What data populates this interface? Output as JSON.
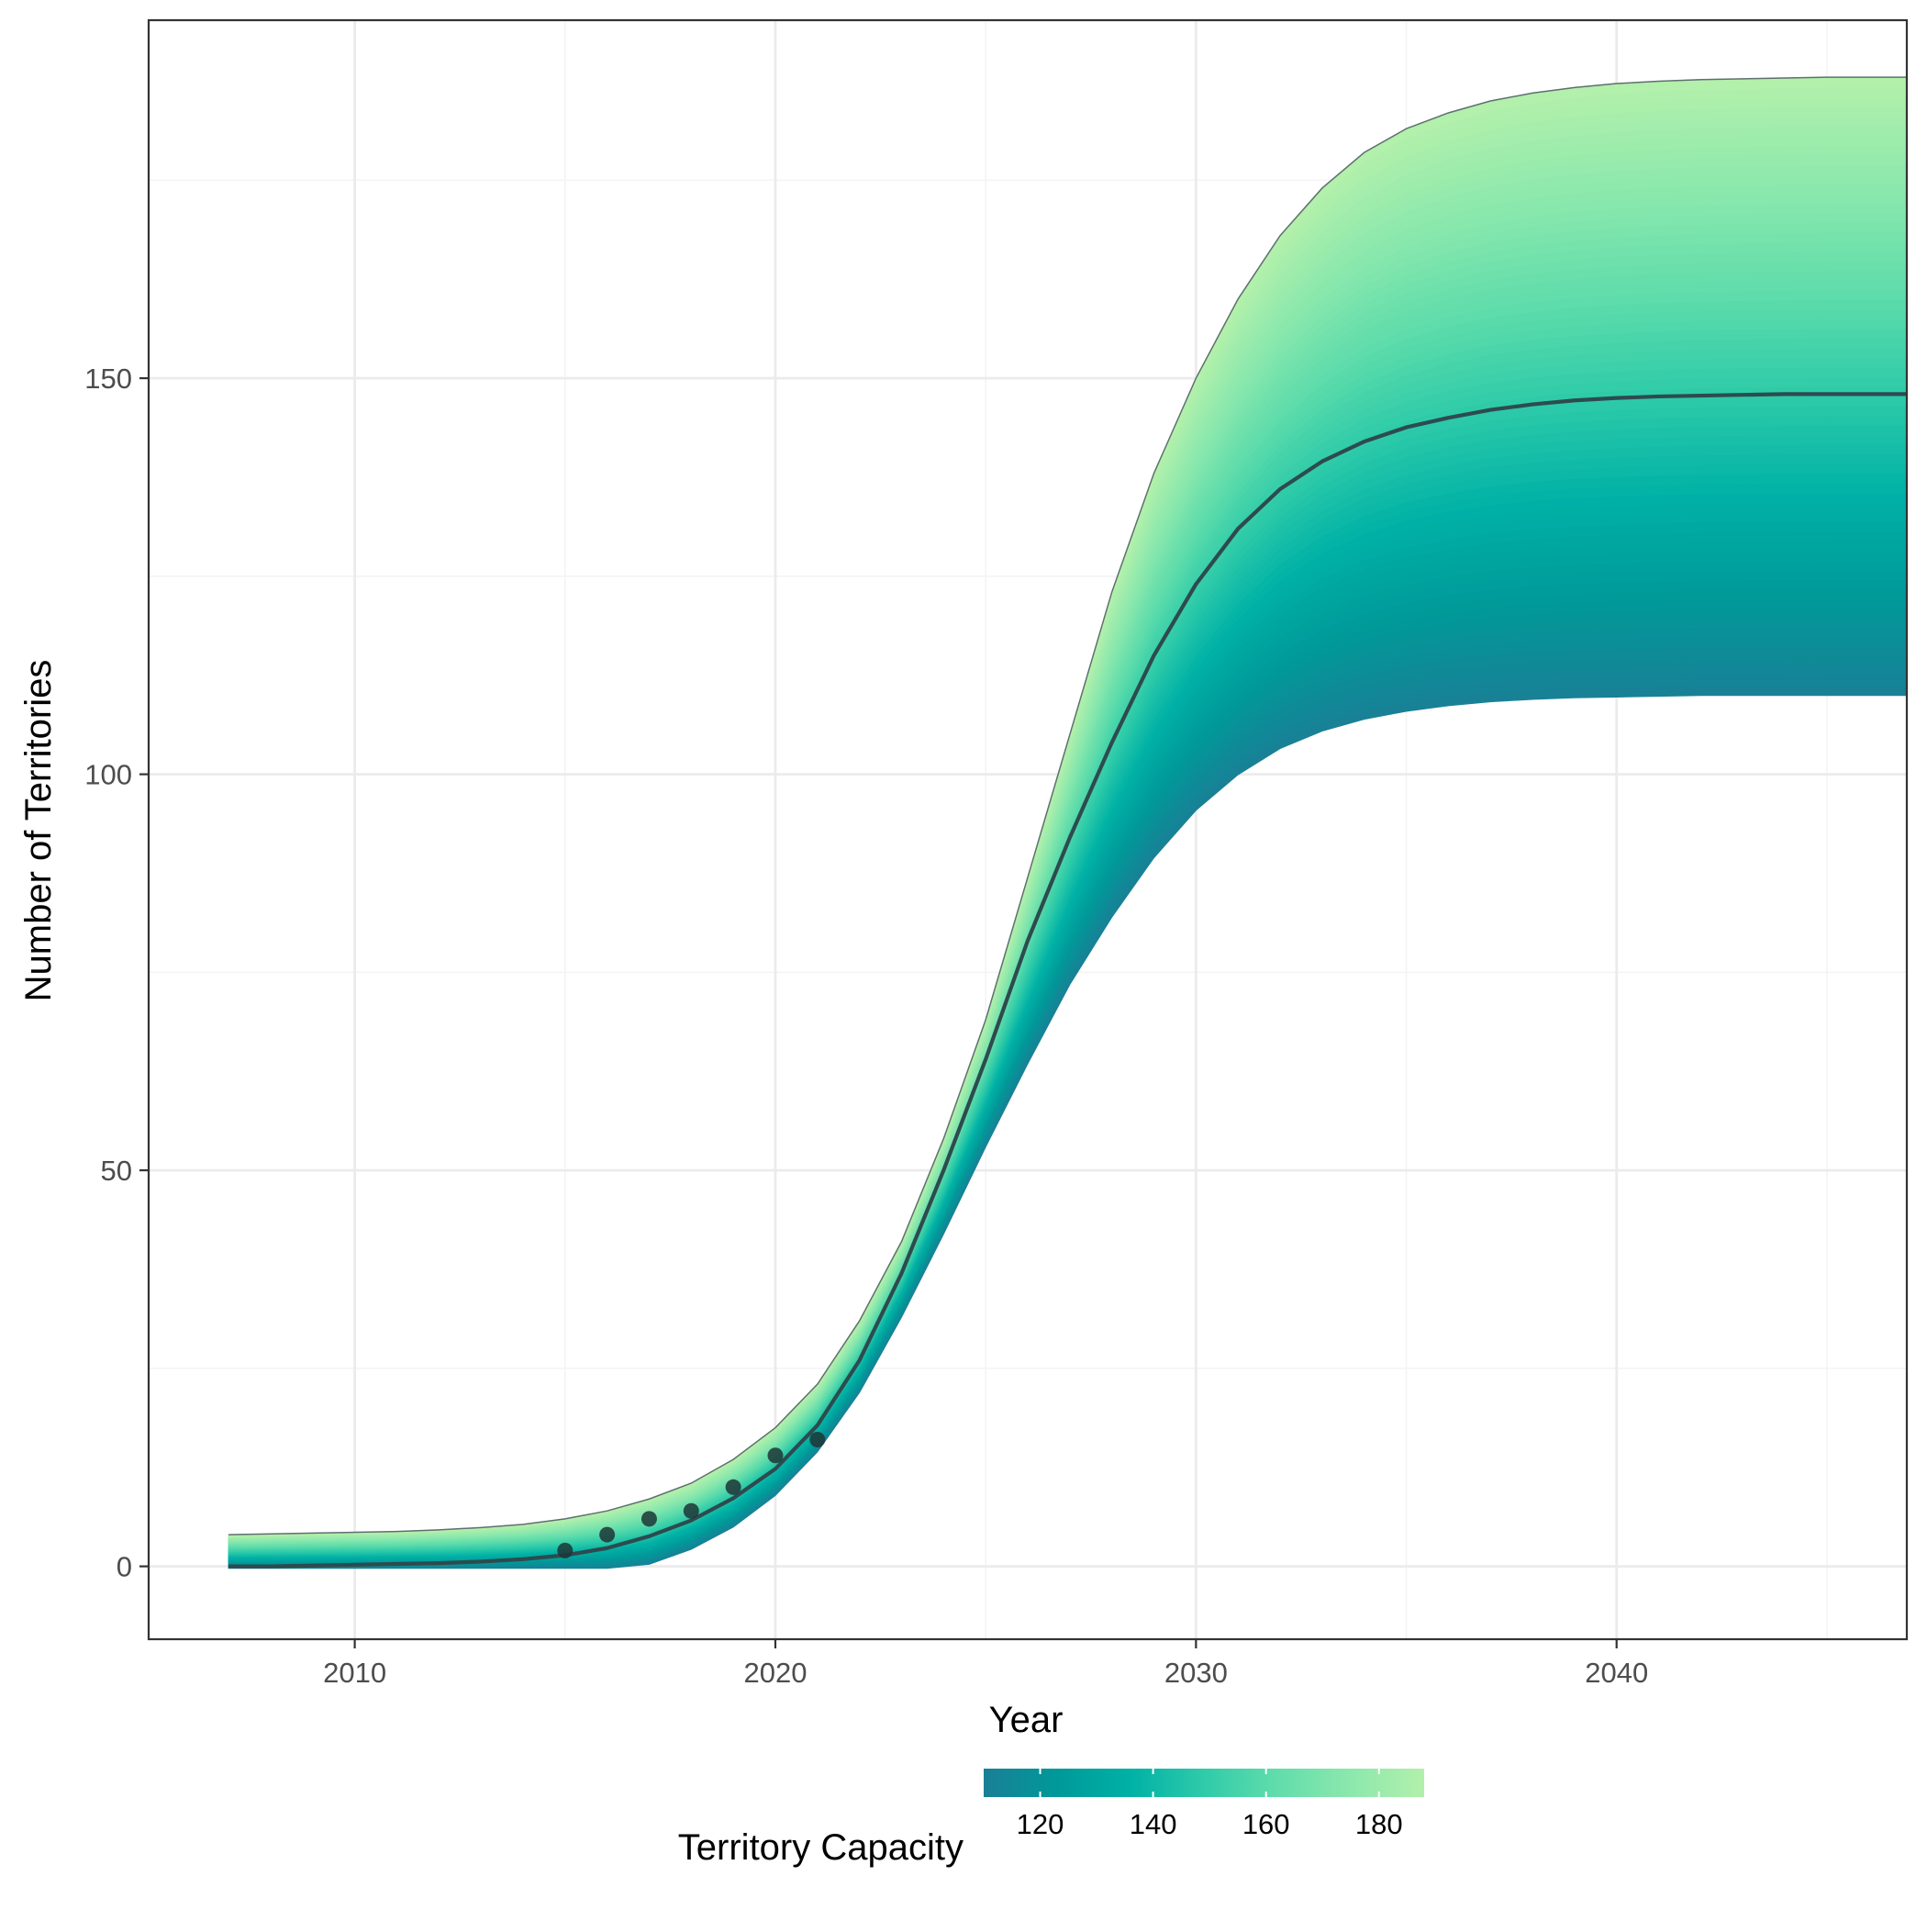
{
  "chart_data": {
    "type": "area",
    "xlabel": "Year",
    "ylabel": "Number of Territories",
    "xlim": [
      2005.1,
      2046.9
    ],
    "ylim": [
      -9.2,
      195.2
    ],
    "x_ticks": [
      2010,
      2020,
      2030,
      2040
    ],
    "x_tick_labels": [
      "2010",
      "2020",
      "2030",
      "2040"
    ],
    "y_ticks": [
      0,
      50,
      100,
      150
    ],
    "y_tick_labels": [
      "0",
      "50",
      "100",
      "150"
    ],
    "grid": true,
    "theme": "bw",
    "x": [
      2007,
      2008,
      2009,
      2010,
      2011,
      2012,
      2013,
      2014,
      2015,
      2016,
      2017,
      2018,
      2019,
      2020,
      2021,
      2022,
      2023,
      2024,
      2025,
      2026,
      2027,
      2028,
      2029,
      2030,
      2031,
      2032,
      2033,
      2034,
      2035,
      2036,
      2037,
      2038,
      2039,
      2040,
      2041,
      2042,
      2043,
      2044,
      2045,
      2046,
      2047
    ],
    "series": [
      {
        "role": "upper-bound",
        "values": [
          4,
          4.1,
          4.2,
          4.3,
          4.4,
          4.6,
          4.9,
          5.3,
          6,
          7,
          8.5,
          10.5,
          13.5,
          17.5,
          23,
          31,
          41,
          54,
          69,
          87,
          105,
          123,
          138,
          150,
          160,
          168,
          174,
          178.5,
          181.5,
          183.5,
          185,
          186,
          186.7,
          187.2,
          187.5,
          187.7,
          187.8,
          187.9,
          188,
          188,
          188
        ]
      },
      {
        "role": "median",
        "values": [
          0,
          0,
          0.1,
          0.2,
          0.3,
          0.4,
          0.6,
          0.9,
          1.4,
          2.3,
          3.8,
          5.8,
          8.6,
          12.3,
          17.8,
          26,
          37,
          50,
          64,
          79,
          92,
          104,
          115,
          124,
          131,
          136,
          139.5,
          142,
          143.8,
          145,
          146,
          146.7,
          147.2,
          147.5,
          147.7,
          147.8,
          147.9,
          148,
          148,
          148,
          148
        ]
      },
      {
        "role": "lower-bound",
        "values": [
          -0.2,
          -0.2,
          -0.2,
          -0.2,
          -0.2,
          -0.2,
          -0.2,
          -0.2,
          -0.2,
          -0.2,
          0.3,
          2.2,
          5,
          9,
          14.5,
          22,
          31.5,
          42,
          53,
          63.5,
          73.5,
          82,
          89.5,
          95.5,
          100,
          103.3,
          105.5,
          107,
          108,
          108.7,
          109.2,
          109.5,
          109.7,
          109.8,
          109.9,
          110,
          110,
          110,
          110,
          110,
          110
        ]
      }
    ],
    "observed_points": {
      "x": [
        2015,
        2016,
        2017,
        2018,
        2019,
        2020,
        2021
      ],
      "y": [
        2,
        4,
        6,
        7,
        10,
        14,
        16
      ]
    },
    "color_scale": {
      "title": "Territory Capacity",
      "range": [
        110,
        188
      ],
      "ticks": [
        120,
        140,
        160,
        180
      ],
      "tick_labels": [
        "120",
        "140",
        "160",
        "180"
      ],
      "colors": [
        "#1a7f96",
        "#009999",
        "#00b1a6",
        "#2fcba9",
        "#61ddab",
        "#8ce8ad",
        "#b2f0ab"
      ],
      "legend_position": "bottom"
    },
    "style": {
      "line_color": "#2d4b4f",
      "point_color": "#1e3536",
      "band_base_color": "#1a7f96",
      "panel_border": "#333333",
      "grid_major": "#ebebeb",
      "grid_minor": "#f4f4f4"
    }
  }
}
